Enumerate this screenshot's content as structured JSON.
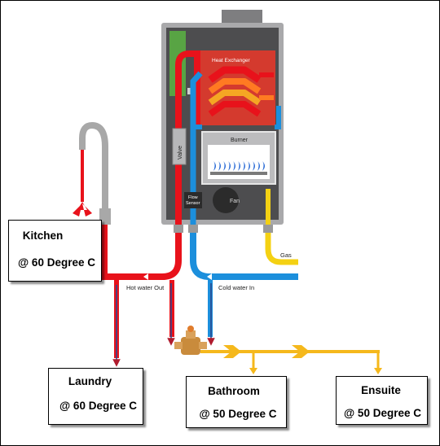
{
  "heater": {
    "heat_exchanger_label": "Heat Exchanger",
    "valve_label": "Valve",
    "burner_label": "Burner",
    "flow_sensor_line1": "Flow",
    "flow_sensor_line2": "Sensor",
    "fan_label": "Fan"
  },
  "pipes": {
    "gas_label": "Gas",
    "hot_out_label": "Hot water Out",
    "cold_in_label": "Cold water In"
  },
  "outlets": {
    "kitchen": {
      "name": "Kitchen",
      "temp": "@ 60 Degree C"
    },
    "laundry": {
      "name": "Laundry",
      "temp": "@ 60 Degree C"
    },
    "bathroom": {
      "name": "Bathroom",
      "temp": "@ 50 Degree C"
    },
    "ensuite": {
      "name": "Ensuite",
      "temp": "@ 50 Degree C"
    }
  },
  "colors": {
    "hot": "#e8121b",
    "cold": "#1c8fdc",
    "gas": "#f4d113",
    "tempered": "#f5b81c",
    "casing": "#4d4d4f",
    "panel": "#58a444",
    "tap": "#a8a8a8"
  }
}
